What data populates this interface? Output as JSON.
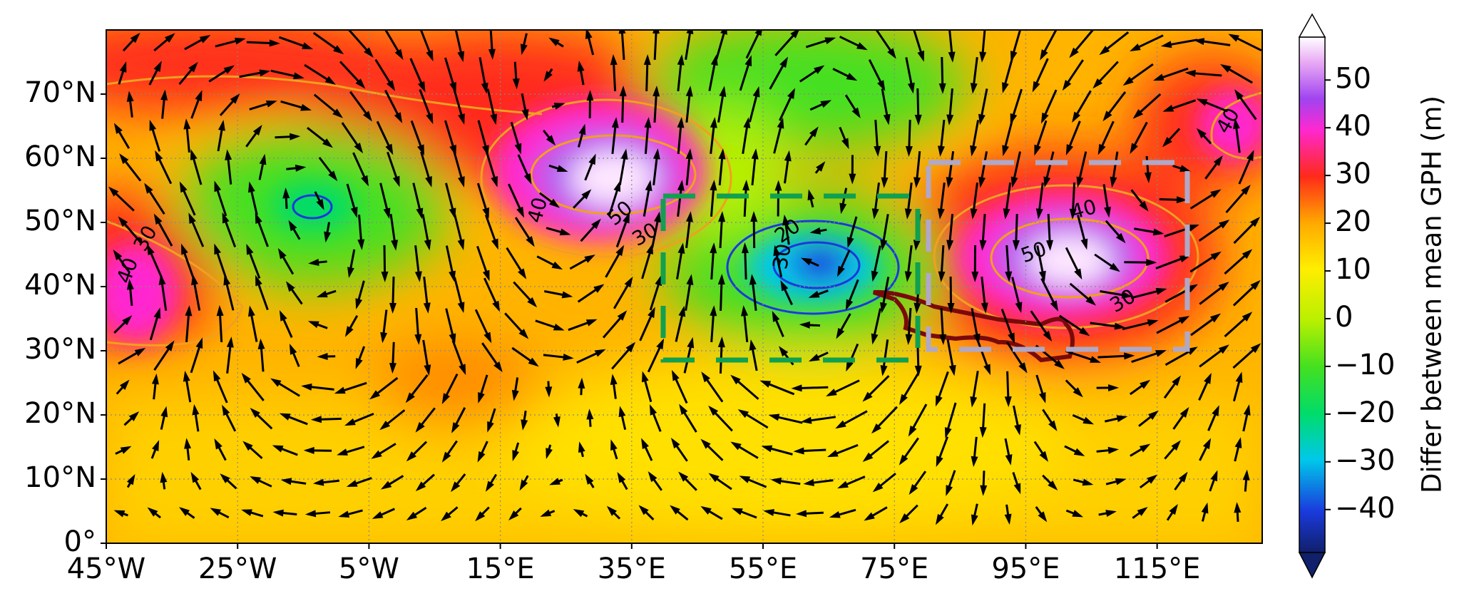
{
  "chart_data": {
    "type": "map",
    "xlim": [
      -45,
      131
    ],
    "ylim": [
      0,
      80
    ],
    "xticks": [
      {
        "value": -45,
        "label": "45°W"
      },
      {
        "value": -25,
        "label": "25°W"
      },
      {
        "value": -5,
        "label": "5°W"
      },
      {
        "value": 15,
        "label": "15°E"
      },
      {
        "value": 35,
        "label": "35°E"
      },
      {
        "value": 55,
        "label": "55°E"
      },
      {
        "value": 75,
        "label": "75°E"
      },
      {
        "value": 95,
        "label": "95°E"
      },
      {
        "value": 115,
        "label": "115°E"
      }
    ],
    "yticks": [
      {
        "value": 0,
        "label": "0°"
      },
      {
        "value": 10,
        "label": "10°N"
      },
      {
        "value": 20,
        "label": "20°N"
      },
      {
        "value": 30,
        "label": "30°N"
      },
      {
        "value": 40,
        "label": "40°N"
      },
      {
        "value": 50,
        "label": "50°N"
      },
      {
        "value": 60,
        "label": "60°N"
      },
      {
        "value": 70,
        "label": "70°N"
      }
    ],
    "grid": true,
    "colorbar": {
      "label": "Differ between mean GPH (m)",
      "lim": [
        -49,
        59
      ],
      "ticks": [
        {
          "value": -40,
          "label": "−40"
        },
        {
          "value": -30,
          "label": "−30"
        },
        {
          "value": -20,
          "label": "−20"
        },
        {
          "value": -10,
          "label": "−10"
        },
        0,
        10,
        20,
        30,
        40,
        50
      ]
    },
    "contour_labels": [
      "30",
      "40",
      "40",
      "50",
      "30",
      "20",
      "30",
      "40",
      "50",
      "30",
      "40"
    ]
  }
}
